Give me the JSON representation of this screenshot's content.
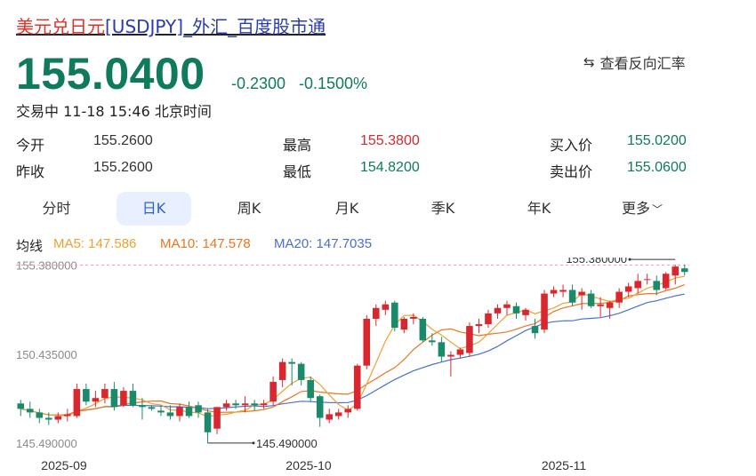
{
  "header": {
    "title_part1": "美元兑日元",
    "title_part2": "[USDJPY]_外汇_百度股市通",
    "price": "155.0400",
    "change": "-0.2300",
    "change_pct": "-0.1500%",
    "reverse_label": "查看反向汇率",
    "status": "交易中 11-18 15:46 北京时间"
  },
  "stats": {
    "open_label": "今开",
    "open": "155.2600",
    "prev_close_label": "昨收",
    "prev_close": "155.2600",
    "high_label": "最高",
    "high": "155.3800",
    "low_label": "最低",
    "low": "154.8200",
    "bid_label": "买入价",
    "bid": "155.0200",
    "ask_label": "卖出价",
    "ask": "155.0600"
  },
  "tabs": [
    "分时",
    "日K",
    "周K",
    "月K",
    "季K",
    "年K",
    "更多"
  ],
  "active_tab": "日K",
  "ma": {
    "label": "均线",
    "ma5": "MA5: 147.586",
    "ma10": "MA10: 147.578",
    "ma20": "MA20: 147.7035"
  },
  "colors": {
    "up": "#d8282e",
    "down": "#1a8a6a",
    "ma5": "#f0a030",
    "ma10": "#e8761e",
    "ma20": "#4a6fd0",
    "price": "#0f7b5c"
  },
  "chart_data": {
    "type": "candlestick",
    "y_ticks": [
      "155.380000",
      "150.435000",
      "145.490000"
    ],
    "x_ticks": [
      "2025-09",
      "2025-10",
      "2025-11"
    ],
    "ylim": [
      145.2,
      155.8
    ],
    "max_label": "155.380000",
    "min_label": "145.490000",
    "candles": [
      [
        147.7,
        147.9,
        147.0,
        147.4
      ],
      [
        147.4,
        147.8,
        146.9,
        147.2
      ],
      [
        147.2,
        147.4,
        146.6,
        146.9
      ],
      [
        146.9,
        147.2,
        146.5,
        146.8
      ],
      [
        146.8,
        147.2,
        146.6,
        147.0
      ],
      [
        147.0,
        147.4,
        146.7,
        147.1
      ],
      [
        147.0,
        148.8,
        146.9,
        148.5
      ],
      [
        148.5,
        148.8,
        147.6,
        147.8
      ],
      [
        147.8,
        148.4,
        147.5,
        148.0
      ],
      [
        148.0,
        148.8,
        147.7,
        148.5
      ],
      [
        148.5,
        148.9,
        147.3,
        147.5
      ],
      [
        147.6,
        148.6,
        147.5,
        148.4
      ],
      [
        148.4,
        148.8,
        147.5,
        147.6
      ],
      [
        147.6,
        148.0,
        146.8,
        147.5
      ],
      [
        147.5,
        147.6,
        147.3,
        147.4
      ],
      [
        147.3,
        147.6,
        147.0,
        147.2
      ],
      [
        147.2,
        147.6,
        146.8,
        147.0
      ],
      [
        147.0,
        147.7,
        146.7,
        147.5
      ],
      [
        147.5,
        147.8,
        146.9,
        147.0
      ],
      [
        147.6,
        147.8,
        146.9,
        147.2
      ],
      [
        147.2,
        147.4,
        145.5,
        146.1
      ],
      [
        146.3,
        147.5,
        146.0,
        147.5
      ],
      [
        147.5,
        147.9,
        147.3,
        147.7
      ],
      [
        147.7,
        147.9,
        147.4,
        147.6
      ],
      [
        147.6,
        148.1,
        147.2,
        147.7
      ],
      [
        147.7,
        147.9,
        147.3,
        147.6
      ],
      [
        147.6,
        147.9,
        147.4,
        147.7
      ],
      [
        147.8,
        149.2,
        147.6,
        148.9
      ],
      [
        149.0,
        150.2,
        148.6,
        150.0
      ],
      [
        150.0,
        150.2,
        148.7,
        149.9
      ],
      [
        149.9,
        150.0,
        148.7,
        149.0
      ],
      [
        149.0,
        149.2,
        147.8,
        148.0
      ],
      [
        148.1,
        148.2,
        146.4,
        146.9
      ],
      [
        146.8,
        147.4,
        146.6,
        147.1
      ],
      [
        147.0,
        147.4,
        146.8,
        147.2
      ],
      [
        147.2,
        147.6,
        146.9,
        147.4
      ],
      [
        147.4,
        149.9,
        147.3,
        149.8
      ],
      [
        149.8,
        152.6,
        149.6,
        152.4
      ],
      [
        152.4,
        153.2,
        152.0,
        153.0
      ],
      [
        152.9,
        153.4,
        152.6,
        153.2
      ],
      [
        153.3,
        153.4,
        151.7,
        151.9
      ],
      [
        151.8,
        152.5,
        151.6,
        152.4
      ],
      [
        152.4,
        152.7,
        152.1,
        152.5
      ],
      [
        152.4,
        152.5,
        151.1,
        151.2
      ],
      [
        151.2,
        151.6,
        150.9,
        151.1
      ],
      [
        151.1,
        151.4,
        150.0,
        150.3
      ],
      [
        150.3,
        150.6,
        149.2,
        150.4
      ],
      [
        150.4,
        150.8,
        150.2,
        150.7
      ],
      [
        150.5,
        152.2,
        150.3,
        152.0
      ],
      [
        152.0,
        152.4,
        151.6,
        152.1
      ],
      [
        152.1,
        152.9,
        151.9,
        152.7
      ],
      [
        152.7,
        153.2,
        152.4,
        153.0
      ],
      [
        153.0,
        153.4,
        152.6,
        153.2
      ],
      [
        153.1,
        153.3,
        152.4,
        152.7
      ],
      [
        152.6,
        153.0,
        152.3,
        152.9
      ],
      [
        152.0,
        152.4,
        151.3,
        151.6
      ],
      [
        151.8,
        154.0,
        151.6,
        153.8
      ],
      [
        153.8,
        154.2,
        153.6,
        154.0
      ],
      [
        153.9,
        154.3,
        153.6,
        154.0
      ],
      [
        154.0,
        154.3,
        153.1,
        153.3
      ],
      [
        153.7,
        154.1,
        152.9,
        153.9
      ],
      [
        153.8,
        154.0,
        153.0,
        153.1
      ],
      [
        153.1,
        153.6,
        152.5,
        153.2
      ],
      [
        153.0,
        153.4,
        152.4,
        153.3
      ],
      [
        153.3,
        154.1,
        153.0,
        153.9
      ],
      [
        153.9,
        154.4,
        153.6,
        154.2
      ],
      [
        154.1,
        154.9,
        153.8,
        154.5
      ],
      [
        154.6,
        154.9,
        154.3,
        154.6
      ],
      [
        154.5,
        154.8,
        153.7,
        154.0
      ],
      [
        154.1,
        155.0,
        154.0,
        154.9
      ],
      [
        154.8,
        155.4,
        154.3,
        155.3
      ],
      [
        155.2,
        155.4,
        154.8,
        155.0
      ]
    ]
  }
}
